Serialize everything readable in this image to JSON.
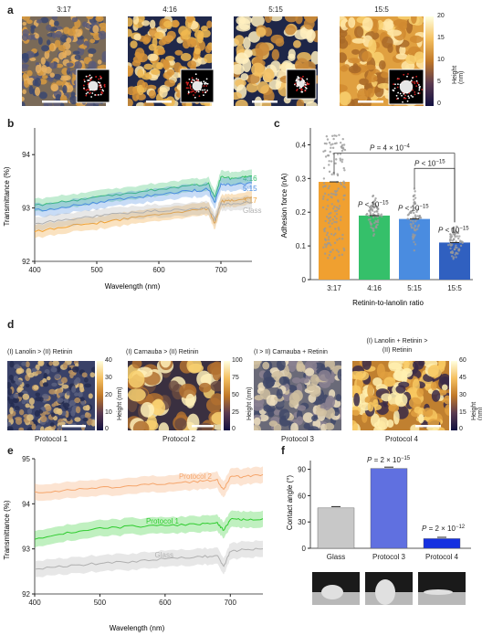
{
  "panel_labels": {
    "a": "a",
    "b": "b",
    "c": "c",
    "d": "d",
    "e": "e",
    "f": "f"
  },
  "panel_a": {
    "titles": [
      "3:17",
      "4:16",
      "5:15",
      "15:5"
    ],
    "colorbar_ticks": [
      "20",
      "15",
      "10",
      "5",
      "0"
    ],
    "colorbar_label": "Height (nm)"
  },
  "panel_d": {
    "titles": [
      "(I) Lanolin > (II) Retinin",
      "(I) Carnauba > (II) Retinin",
      "(I > II) Carnauba + Retinin",
      "(I) Lanolin + Retinin >",
      "(II) Retinin"
    ],
    "protocols": [
      "Protocol 1",
      "Protocol 2",
      "Protocol 3",
      "Protocol 4"
    ],
    "cb1": {
      "ticks": [
        "40",
        "30",
        "20",
        "10",
        "0"
      ],
      "label": "Height (nm)"
    },
    "cb2": {
      "ticks": [
        "100",
        "75",
        "50",
        "25",
        "0"
      ],
      "label": "Height (nm)"
    },
    "cb3": {
      "ticks": [
        "60",
        "45",
        "30",
        "15",
        "0"
      ],
      "label": "Height (nm)"
    }
  },
  "colors": {
    "c317": "#F0A030",
    "c416": "#35C06A",
    "c515": "#4A8CE0",
    "c155": "#3060C0",
    "glass": "#B0B0B0",
    "protocol2": "#F5A56B",
    "protocol1": "#2ECC2E",
    "p3bar": "#6070E0",
    "p4bar": "#1530E0"
  },
  "chart_data": [
    {
      "type": "line",
      "xlabel": "Wavelength (nm)",
      "ylabel": "Transmittance (%)",
      "xlim": [
        400,
        750
      ],
      "ylim": [
        92,
        94.5
      ],
      "xticks": [
        "400",
        "500",
        "600",
        "700"
      ],
      "yticks": [
        "92",
        "93",
        "94"
      ],
      "x": [
        400,
        450,
        500,
        550,
        600,
        650,
        680,
        690,
        700,
        720,
        750
      ],
      "series": [
        {
          "name": "4:16",
          "values": [
            93.05,
            93.12,
            93.2,
            93.28,
            93.35,
            93.42,
            93.45,
            93.2,
            93.58,
            93.55,
            93.6
          ]
        },
        {
          "name": "5:15",
          "values": [
            92.95,
            93.02,
            93.1,
            93.18,
            93.25,
            93.32,
            93.35,
            93.1,
            93.45,
            93.44,
            93.47
          ]
        },
        {
          "name": "3:17",
          "values": [
            92.55,
            92.65,
            92.72,
            92.8,
            92.88,
            92.95,
            92.98,
            92.7,
            93.12,
            93.15,
            93.2
          ]
        },
        {
          "name": "Glass",
          "values": [
            92.7,
            92.78,
            92.85,
            92.9,
            92.95,
            92.98,
            93.0,
            92.78,
            93.08,
            93.08,
            93.1
          ]
        }
      ]
    },
    {
      "type": "bar",
      "xlabel": "Retinin-to-lanolin ratio",
      "ylabel": "Adhesion force (nA)",
      "ylim": [
        0,
        0.45
      ],
      "yticks": [
        "0",
        "0.1",
        "0.2",
        "0.3",
        "0.4"
      ],
      "categories": [
        "3:17",
        "4:16",
        "5:15",
        "15:5"
      ],
      "values": [
        0.29,
        0.19,
        0.18,
        0.11
      ],
      "annotations": [
        {
          "text": "P = 4 × 10",
          "sup": "−4"
        },
        {
          "text": "P < 10",
          "sup": "−15"
        },
        {
          "text": "P < 10",
          "sup": "−15"
        },
        {
          "text": "P < 10",
          "sup": "−15"
        },
        {
          "text": "P < 10",
          "sup": "−15"
        }
      ]
    },
    {
      "type": "line",
      "xlabel": "Wavelength (nm)",
      "ylabel": "Transmittance (%)",
      "xlim": [
        400,
        750
      ],
      "ylim": [
        92,
        95
      ],
      "xticks": [
        "400",
        "500",
        "600",
        "700"
      ],
      "yticks": [
        "92",
        "93",
        "94",
        "95"
      ],
      "x": [
        400,
        450,
        500,
        550,
        600,
        650,
        680,
        690,
        700,
        720,
        750
      ],
      "series": [
        {
          "name": "Protocol 2",
          "values": [
            94.25,
            94.3,
            94.35,
            94.4,
            94.45,
            94.5,
            94.52,
            94.3,
            94.6,
            94.6,
            94.65
          ]
        },
        {
          "name": "Protocol 1",
          "values": [
            93.2,
            93.35,
            93.45,
            93.5,
            93.52,
            93.55,
            93.57,
            93.4,
            93.65,
            93.65,
            93.67
          ]
        },
        {
          "name": "Glass",
          "values": [
            92.55,
            92.62,
            92.68,
            92.72,
            92.78,
            92.82,
            92.85,
            92.6,
            92.95,
            92.98,
            93.0
          ]
        }
      ]
    },
    {
      "type": "bar",
      "ylabel": "Contact angle (°)",
      "ylim": [
        0,
        100
      ],
      "yticks": [
        "0",
        "30",
        "60",
        "90"
      ],
      "categories": [
        "Glass",
        "Protocol 3",
        "Protocol 4"
      ],
      "values": [
        46,
        91,
        11
      ],
      "annotations": [
        {
          "text": "P = 2 × 10",
          "sup": "−15"
        },
        {
          "text": "P = 2 × 10",
          "sup": "−12"
        }
      ]
    }
  ]
}
